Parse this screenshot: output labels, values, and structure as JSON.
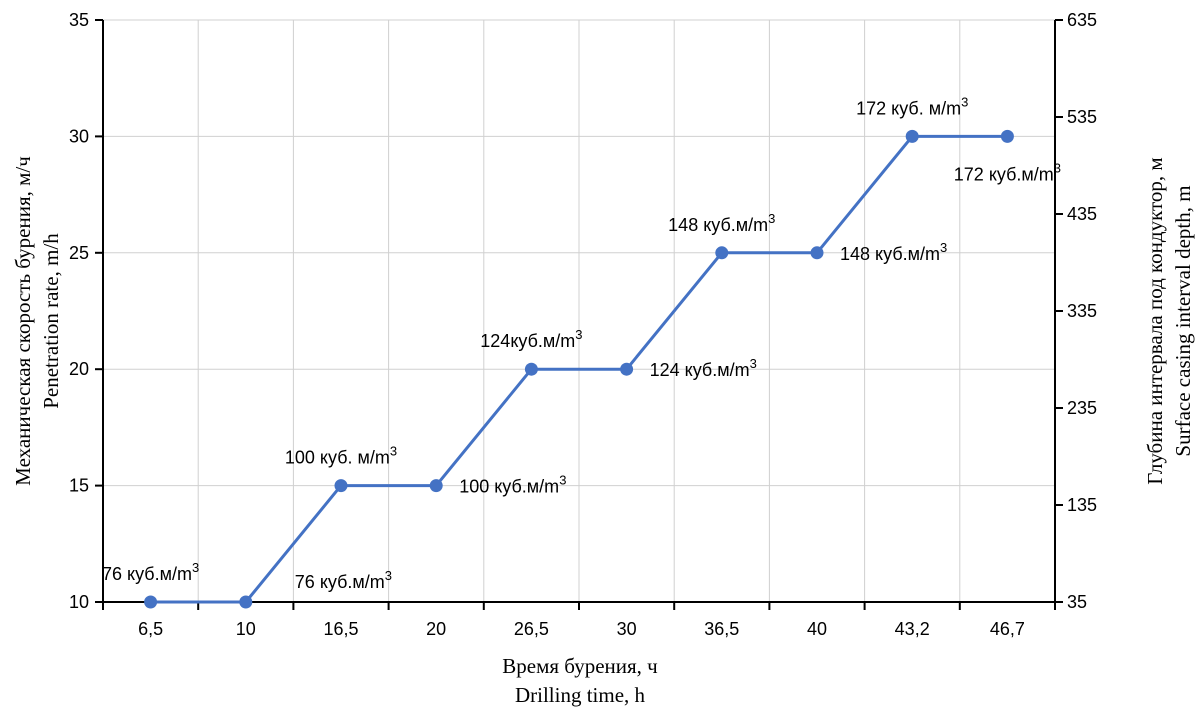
{
  "chart_data": {
    "type": "line",
    "categories": [
      "6,5",
      "10",
      "16,5",
      "20",
      "26,5",
      "30",
      "36,5",
      "40",
      "43,2",
      "46,7"
    ],
    "series": [
      {
        "values": [
          10,
          10,
          15,
          15,
          20,
          20,
          25,
          25,
          30,
          30
        ],
        "color": "#4472C4"
      }
    ],
    "data_labels": [
      {
        "text": "76 куб.м/m³",
        "position": "above"
      },
      {
        "text": "76 куб.м/m³",
        "position": "below-right"
      },
      {
        "text": "100 куб. м/m³",
        "position": "above"
      },
      {
        "text": "100 куб.м/m³",
        "position": "right"
      },
      {
        "text": "124куб.м/m³",
        "position": "above"
      },
      {
        "text": "124 куб.м/m³",
        "position": "right"
      },
      {
        "text": "148 куб.м/m³",
        "position": "above"
      },
      {
        "text": "148 куб.м/m³",
        "position": "right"
      },
      {
        "text": "172 куб. м/m³",
        "position": "above"
      },
      {
        "text": "172 куб.м/m³",
        "position": "below"
      }
    ],
    "y_left": {
      "min": 10,
      "max": 35,
      "ticks": [
        "10",
        "15",
        "20",
        "25",
        "30",
        "35"
      ],
      "title_line1": "Механическая скорость бурения, м/ч",
      "title_line2": "Penetration rate, m/h"
    },
    "y_right": {
      "min": 35,
      "max": 635,
      "ticks": [
        "35",
        "135",
        "235",
        "335",
        "435",
        "535",
        "635"
      ],
      "title_line1": "Глубина интервала под кондуктор, м",
      "title_line2": "Surface casing interval depth, m"
    },
    "x_axis": {
      "title_line1": "Время бурения, ч",
      "title_line2": "Drilling time, h"
    },
    "grid": true
  }
}
